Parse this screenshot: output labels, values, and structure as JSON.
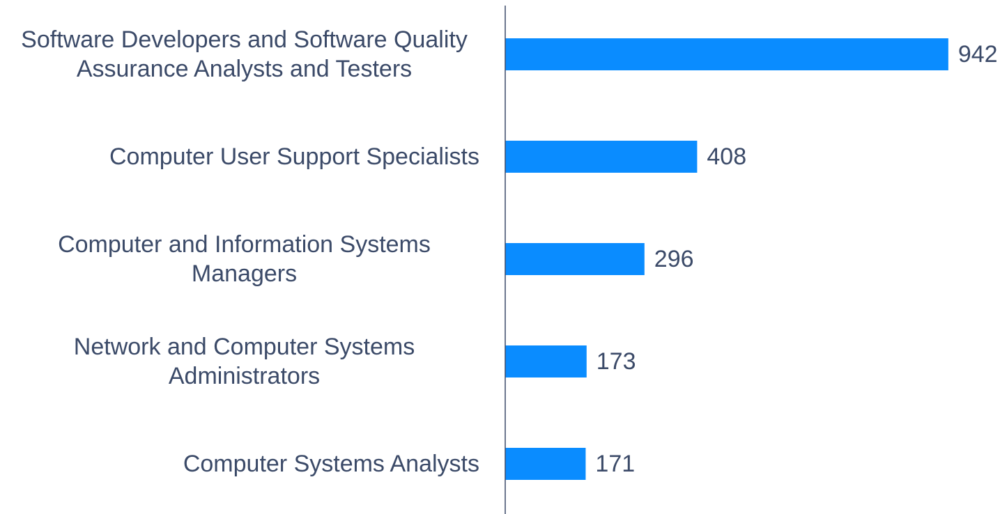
{
  "chart_data": {
    "type": "bar",
    "orientation": "horizontal",
    "categories": [
      "Software Developers and Software Quality Assurance Analysts and Testers",
      "Computer User Support Specialists",
      "Computer and Information Systems Managers",
      "Network and Computer Systems Administrators",
      "Computer Systems Analysts"
    ],
    "values": [
      942,
      408,
      296,
      173,
      171
    ],
    "color": "#0a8cff",
    "xlim": [
      0,
      1000
    ]
  }
}
